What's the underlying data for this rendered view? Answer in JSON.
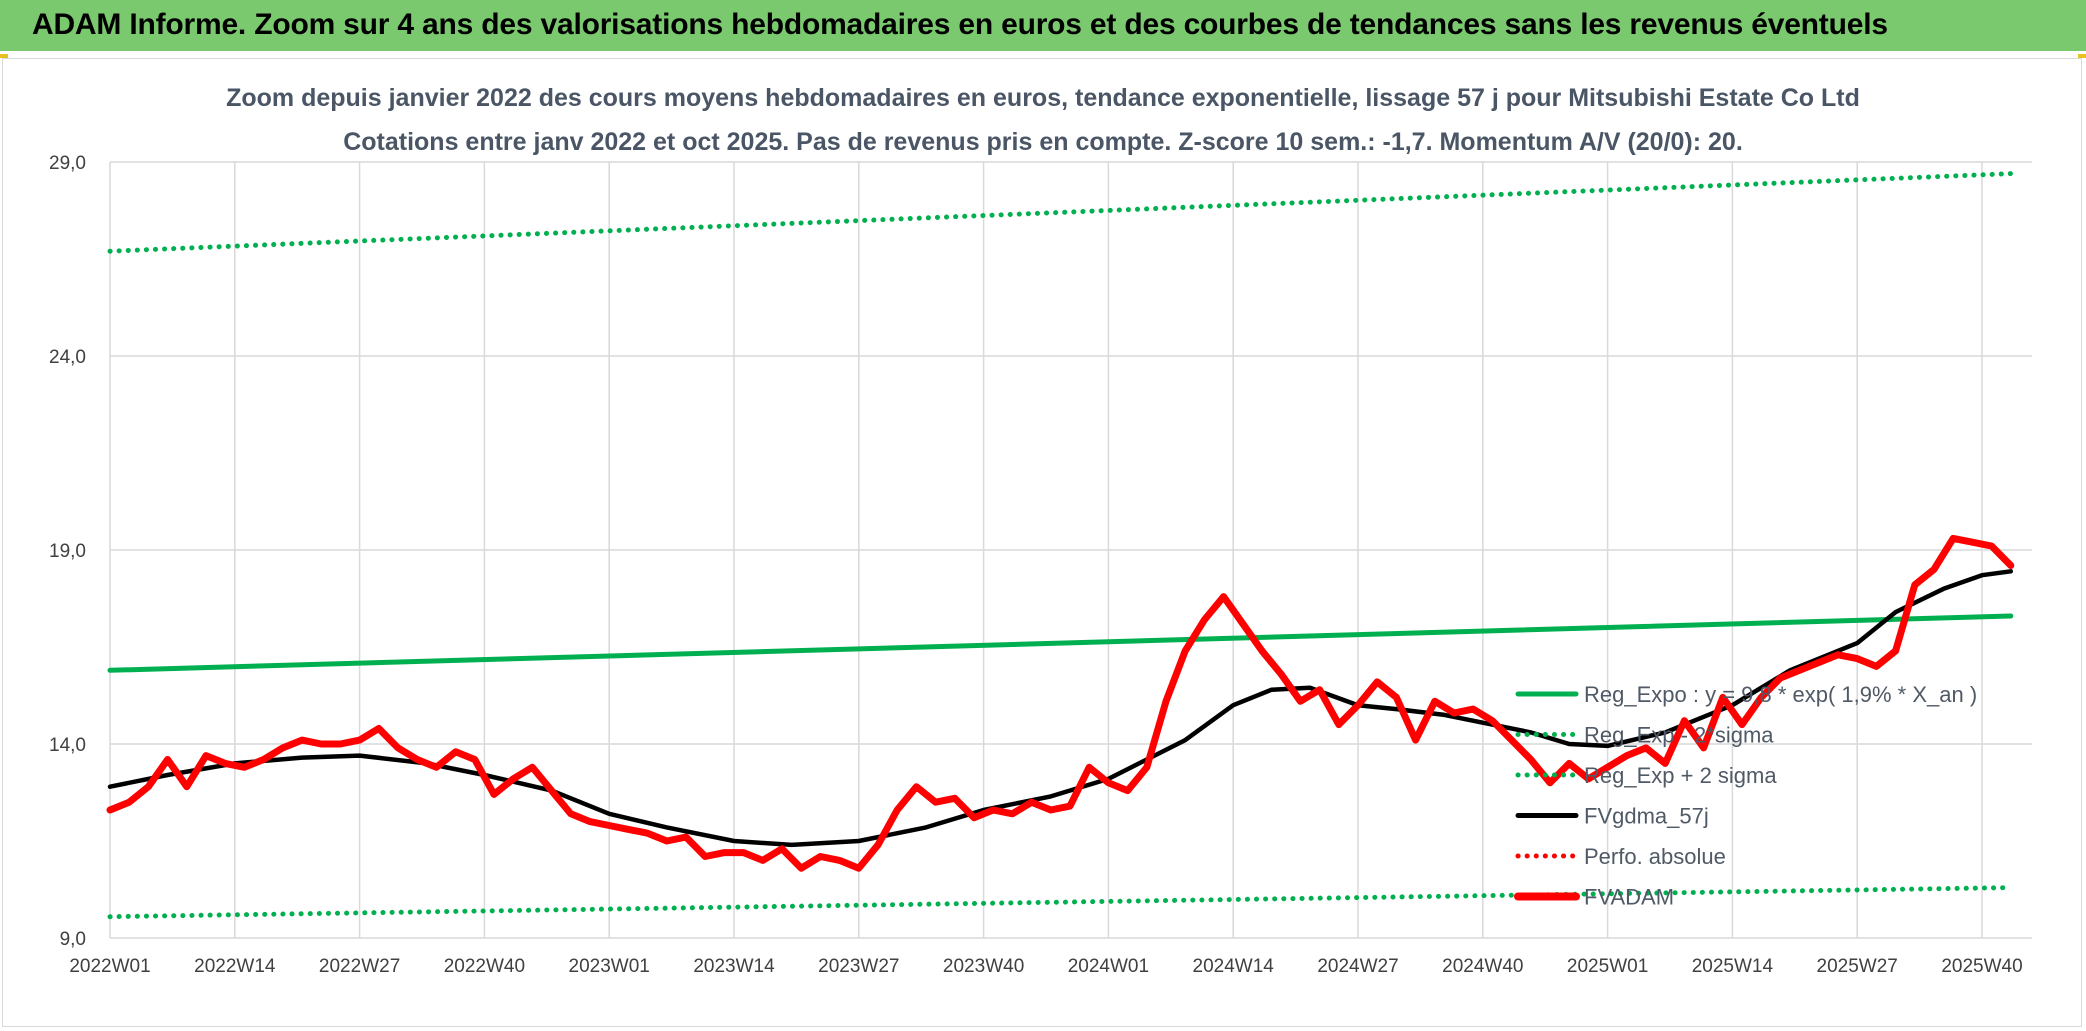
{
  "header": {
    "title": "ADAM Informe. Zoom sur 4 ans des valorisations hebdomadaires en euros et des courbes de tendances sans les revenus éventuels"
  },
  "chart_data": {
    "type": "line",
    "title": "Zoom depuis janvier 2022 des cours moyens hebdomadaires en euros, tendance exponentielle, lissage 57 j pour Mitsubishi Estate Co Ltd",
    "subtitle": "Cotations entre janv 2022 et oct 2025. Pas de revenus pris en compte. Z-score 10 sem.: -1,7. Momentum A/V (20/0): 20.",
    "xlabel": "",
    "ylabel": "",
    "ylim": [
      9,
      29
    ],
    "yticks": [
      "9,0",
      "14,0",
      "19,0",
      "24,0",
      "29,0"
    ],
    "ytick_values": [
      9,
      14,
      19,
      24,
      29
    ],
    "xticks": [
      "2022W01",
      "2022W14",
      "2022W27",
      "2022W40",
      "2023W01",
      "2023W14",
      "2023W27",
      "2023W40",
      "2024W01",
      "2024W14",
      "2024W27",
      "2024W40",
      "2025W01",
      "2025W14",
      "2025W27",
      "2025W40"
    ],
    "grid": true,
    "legend_position": "right",
    "series": [
      {
        "name": "Reg_Expo : y = 9,8 * exp( 1,9% *  X_an )",
        "color": "#00b050",
        "style": "solid",
        "x": [
          "2022W01",
          "2025W43"
        ],
        "values": [
          15.9,
          17.3
        ]
      },
      {
        "name": "Reg_Exp - 2*sigma",
        "color": "#00b050",
        "style": "dotted",
        "x": [
          "2022W01",
          "2025W43"
        ],
        "values": [
          9.55,
          10.3
        ]
      },
      {
        "name": "Reg_Exp + 2 sigma",
        "color": "#00b050",
        "style": "dotted",
        "x": [
          "2022W01",
          "2025W43"
        ],
        "values": [
          26.7,
          28.7
        ]
      },
      {
        "name": "FVgdma_57j",
        "color": "#000000",
        "style": "solid",
        "x": [
          "2022W01",
          "2022W07",
          "2022W14",
          "2022W21",
          "2022W27",
          "2022W34",
          "2022W40",
          "2022W47",
          "2023W01",
          "2023W07",
          "2023W14",
          "2023W20",
          "2023W27",
          "2023W34",
          "2023W40",
          "2023W47",
          "2024W01",
          "2024W05",
          "2024W09",
          "2024W14",
          "2024W18",
          "2024W22",
          "2024W27",
          "2024W31",
          "2024W36",
          "2024W40",
          "2024W45",
          "2024W49",
          "2025W01",
          "2025W07",
          "2025W14",
          "2025W20",
          "2025W27",
          "2025W31",
          "2025W36",
          "2025W40",
          "2025W43"
        ],
        "values": [
          12.9,
          13.2,
          13.5,
          13.65,
          13.7,
          13.5,
          13.2,
          12.8,
          12.2,
          11.85,
          11.5,
          11.4,
          11.5,
          11.85,
          12.3,
          12.65,
          13.1,
          13.6,
          14.1,
          15.0,
          15.4,
          15.45,
          15.0,
          14.9,
          14.75,
          14.55,
          14.3,
          14.0,
          13.95,
          14.3,
          15.0,
          15.9,
          16.6,
          17.4,
          18.0,
          18.35,
          18.45
        ]
      },
      {
        "name": "Perfo. absolue",
        "color": "#ff0000",
        "style": "dotted",
        "x": [],
        "values": []
      },
      {
        "name": "FVADAM",
        "color": "#ff0000",
        "style": "solid",
        "x": [
          "2022W01",
          "2022W03",
          "2022W05",
          "2022W07",
          "2022W09",
          "2022W11",
          "2022W13",
          "2022W15",
          "2022W17",
          "2022W19",
          "2022W21",
          "2022W23",
          "2022W25",
          "2022W27",
          "2022W29",
          "2022W31",
          "2022W33",
          "2022W35",
          "2022W37",
          "2022W39",
          "2022W41",
          "2022W43",
          "2022W45",
          "2022W47",
          "2022W49",
          "2022W51",
          "2023W01",
          "2023W03",
          "2023W05",
          "2023W07",
          "2023W09",
          "2023W11",
          "2023W13",
          "2023W15",
          "2023W17",
          "2023W19",
          "2023W21",
          "2023W23",
          "2023W25",
          "2023W27",
          "2023W29",
          "2023W31",
          "2023W33",
          "2023W35",
          "2023W37",
          "2023W39",
          "2023W41",
          "2023W43",
          "2023W45",
          "2023W47",
          "2023W49",
          "2023W51",
          "2024W01",
          "2024W03",
          "2024W05",
          "2024W07",
          "2024W09",
          "2024W11",
          "2024W13",
          "2024W15",
          "2024W17",
          "2024W19",
          "2024W21",
          "2024W23",
          "2024W25",
          "2024W27",
          "2024W29",
          "2024W31",
          "2024W33",
          "2024W35",
          "2024W37",
          "2024W39",
          "2024W41",
          "2024W43",
          "2024W45",
          "2024W47",
          "2024W49",
          "2024W51",
          "2025W01",
          "2025W03",
          "2025W05",
          "2025W07",
          "2025W09",
          "2025W11",
          "2025W13",
          "2025W15",
          "2025W17",
          "2025W19",
          "2025W21",
          "2025W23",
          "2025W25",
          "2025W27",
          "2025W29",
          "2025W31",
          "2025W33",
          "2025W35",
          "2025W37",
          "2025W39",
          "2025W41",
          "2025W43"
        ],
        "values": [
          12.3,
          12.5,
          12.9,
          13.6,
          12.9,
          13.7,
          13.5,
          13.4,
          13.6,
          13.9,
          14.1,
          14.0,
          14.0,
          14.1,
          14.4,
          13.9,
          13.6,
          13.4,
          13.8,
          13.6,
          12.7,
          13.1,
          13.4,
          12.8,
          12.2,
          12.0,
          11.9,
          11.8,
          11.7,
          11.5,
          11.6,
          11.1,
          11.2,
          11.2,
          11.0,
          11.3,
          10.8,
          11.1,
          11.0,
          10.8,
          11.4,
          12.3,
          12.9,
          12.5,
          12.6,
          12.1,
          12.3,
          12.2,
          12.5,
          12.3,
          12.4,
          13.4,
          13.0,
          12.8,
          13.4,
          15.1,
          16.4,
          17.2,
          17.8,
          17.1,
          16.4,
          15.8,
          15.1,
          15.4,
          14.5,
          15.0,
          15.6,
          15.2,
          14.1,
          15.1,
          14.8,
          14.9,
          14.6,
          14.1,
          13.6,
          13.0,
          13.5,
          13.1,
          13.4,
          13.7,
          13.9,
          13.5,
          14.6,
          13.9,
          15.2,
          14.5,
          15.2,
          15.7,
          15.9,
          16.1,
          16.3,
          16.2,
          16.0,
          16.4,
          18.1,
          18.5,
          19.3,
          19.2,
          19.1,
          18.6
        ]
      }
    ]
  }
}
